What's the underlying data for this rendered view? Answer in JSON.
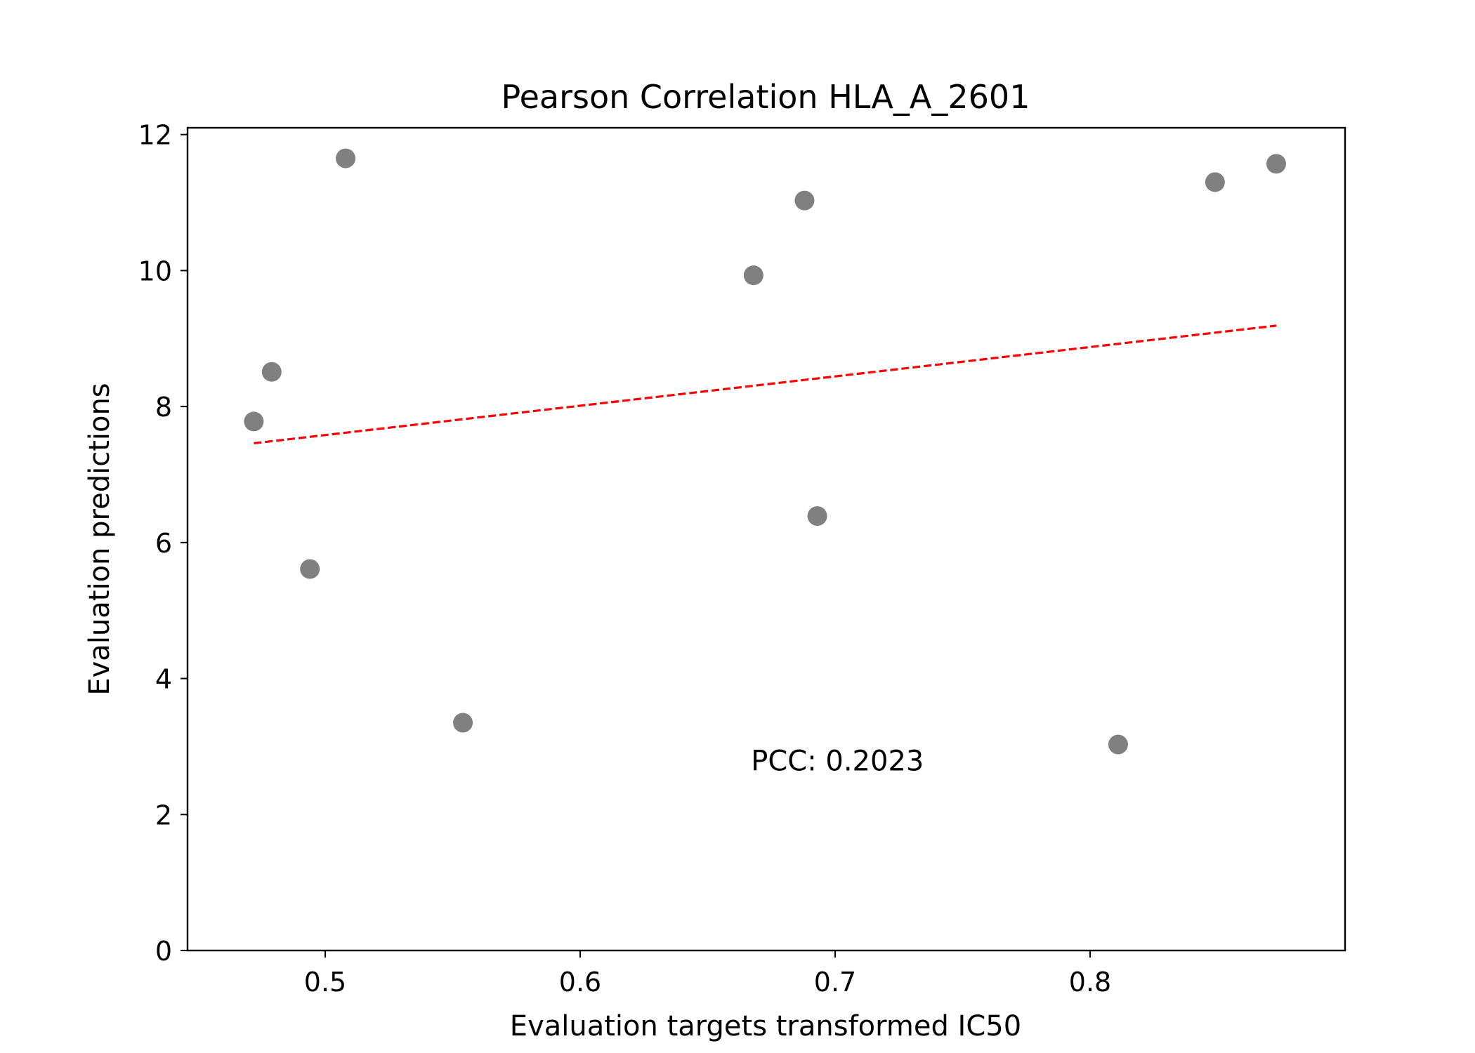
{
  "chart_data": {
    "type": "scatter",
    "title": "Pearson Correlation HLA_A_2601",
    "xlabel": "Evaluation targets transformed IC50",
    "ylabel": "Evaluation predictions",
    "xlim": [
      0.446,
      0.9
    ],
    "ylim": [
      0,
      12.1
    ],
    "xticks": [
      0.5,
      0.6,
      0.7,
      0.8
    ],
    "yticks": [
      0,
      2,
      4,
      6,
      8,
      10,
      12
    ],
    "xtick_labels": [
      "0.5",
      "0.6",
      "0.7",
      "0.8"
    ],
    "ytick_labels": [
      "0",
      "2",
      "4",
      "6",
      "8",
      "10",
      "12"
    ],
    "grid": false,
    "colors": {
      "points": "#808080",
      "fit_line": "#ff0000",
      "axes": "#000000"
    },
    "points": [
      {
        "x": 0.472,
        "y": 7.78
      },
      {
        "x": 0.479,
        "y": 8.51
      },
      {
        "x": 0.494,
        "y": 5.61
      },
      {
        "x": 0.508,
        "y": 11.65
      },
      {
        "x": 0.554,
        "y": 3.35
      },
      {
        "x": 0.668,
        "y": 9.93
      },
      {
        "x": 0.688,
        "y": 11.03
      },
      {
        "x": 0.693,
        "y": 6.39
      },
      {
        "x": 0.811,
        "y": 3.03
      },
      {
        "x": 0.849,
        "y": 11.3
      },
      {
        "x": 0.873,
        "y": 11.57
      }
    ],
    "fit_line": {
      "x": [
        0.472,
        0.873
      ],
      "y": [
        7.46,
        9.19
      ],
      "style": "dashed"
    },
    "annotation": {
      "text": "PCC: 0.2023",
      "x": 0.667,
      "y": 2.65
    }
  }
}
